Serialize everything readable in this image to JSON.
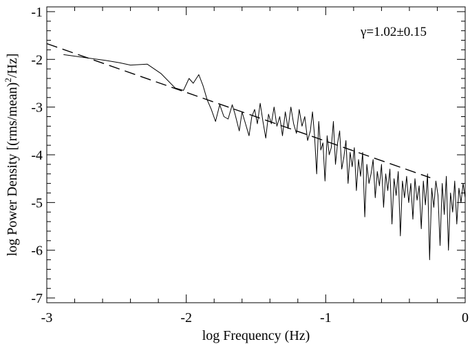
{
  "chart_data": {
    "type": "line",
    "title": "",
    "xlabel": "log Frequency (Hz)",
    "ylabel": "log Power Density [(rms/mean)",
    "ylabel_sup": "2",
    "ylabel_tail": "/Hz]",
    "xlim": [
      -3,
      0
    ],
    "ylim": [
      -7.1,
      -0.9
    ],
    "xticks": [
      -3,
      -2,
      -1,
      0
    ],
    "xtick_labels": [
      "-3",
      "-2",
      "-1",
      "0"
    ],
    "yticks": [
      -1,
      -2,
      -3,
      -4,
      -5,
      -6,
      -7
    ],
    "ytick_labels": [
      "-1",
      "-2",
      "-3",
      "-4",
      "-5",
      "-6",
      "-7"
    ],
    "grid": false,
    "annotation": "γ=1.02±0.15",
    "series": [
      {
        "style": "solid",
        "color": "#000000",
        "x": [
          -2.88,
          -2.76,
          -2.58,
          -2.48,
          -2.4,
          -2.28,
          -2.18,
          -2.08,
          -2.02,
          -1.98,
          -1.95,
          -1.91,
          -1.88,
          -1.85,
          -1.82,
          -1.79,
          -1.76,
          -1.73,
          -1.7,
          -1.67,
          -1.65,
          -1.62,
          -1.6,
          -1.58,
          -1.55,
          -1.53,
          -1.51,
          -1.49,
          -1.47,
          -1.45,
          -1.43,
          -1.41,
          -1.39,
          -1.37,
          -1.35,
          -1.33,
          -1.31,
          -1.29,
          -1.27,
          -1.25,
          -1.23,
          -1.21,
          -1.19,
          -1.17,
          -1.15,
          -1.13,
          -1.11,
          -1.095,
          -1.08,
          -1.065,
          -1.05,
          -1.035,
          -1.02,
          -1.005,
          -0.99,
          -0.975,
          -0.96,
          -0.945,
          -0.93,
          -0.915,
          -0.9,
          -0.885,
          -0.87,
          -0.855,
          -0.84,
          -0.825,
          -0.81,
          -0.795,
          -0.78,
          -0.765,
          -0.75,
          -0.735,
          -0.72,
          -0.705,
          -0.69,
          -0.675,
          -0.66,
          -0.645,
          -0.63,
          -0.615,
          -0.6,
          -0.585,
          -0.57,
          -0.555,
          -0.54,
          -0.525,
          -0.51,
          -0.495,
          -0.48,
          -0.465,
          -0.45,
          -0.435,
          -0.42,
          -0.405,
          -0.39,
          -0.375,
          -0.36,
          -0.345,
          -0.33,
          -0.315,
          -0.3,
          -0.285,
          -0.27,
          -0.255,
          -0.24,
          -0.225,
          -0.21,
          -0.195,
          -0.18,
          -0.165,
          -0.15,
          -0.135,
          -0.12,
          -0.105,
          -0.09,
          -0.075,
          -0.06,
          -0.045,
          -0.03,
          -0.015,
          0.0
        ],
        "y": [
          -1.9,
          -1.95,
          -2.02,
          -2.07,
          -2.12,
          -2.1,
          -2.3,
          -2.6,
          -2.65,
          -2.4,
          -2.5,
          -2.32,
          -2.55,
          -2.85,
          -3.05,
          -3.3,
          -2.95,
          -3.2,
          -3.25,
          -2.95,
          -3.15,
          -3.5,
          -3.1,
          -3.3,
          -3.6,
          -3.2,
          -3.05,
          -3.35,
          -2.92,
          -3.3,
          -3.65,
          -3.15,
          -3.35,
          -3.0,
          -3.4,
          -3.2,
          -3.6,
          -3.1,
          -3.45,
          -3.0,
          -3.35,
          -3.55,
          -3.05,
          -3.4,
          -3.2,
          -3.7,
          -3.5,
          -3.1,
          -3.6,
          -4.4,
          -3.3,
          -3.9,
          -3.75,
          -4.55,
          -3.6,
          -4.0,
          -3.85,
          -3.3,
          -4.2,
          -3.75,
          -3.5,
          -4.3,
          -4.05,
          -3.7,
          -4.6,
          -3.95,
          -4.25,
          -3.85,
          -4.75,
          -4.1,
          -4.45,
          -3.95,
          -5.3,
          -4.2,
          -4.6,
          -4.4,
          -4.1,
          -4.9,
          -4.35,
          -4.65,
          -4.2,
          -5.1,
          -4.4,
          -4.75,
          -4.3,
          -5.45,
          -4.5,
          -4.85,
          -4.35,
          -5.7,
          -4.55,
          -4.9,
          -4.45,
          -5.0,
          -4.6,
          -5.35,
          -4.5,
          -4.95,
          -4.65,
          -5.55,
          -4.55,
          -5.05,
          -4.4,
          -6.2,
          -4.7,
          -5.1,
          -4.55,
          -4.85,
          -5.9,
          -4.6,
          -5.25,
          -4.45,
          -6.0,
          -4.8,
          -5.2,
          -4.55,
          -5.45,
          -4.7,
          -5.0,
          -4.6,
          -4.9
        ]
      },
      {
        "style": "dashed",
        "color": "#000000",
        "x": [
          -3.0,
          -0.25
        ],
        "y": [
          -1.67,
          -4.48
        ]
      }
    ]
  }
}
